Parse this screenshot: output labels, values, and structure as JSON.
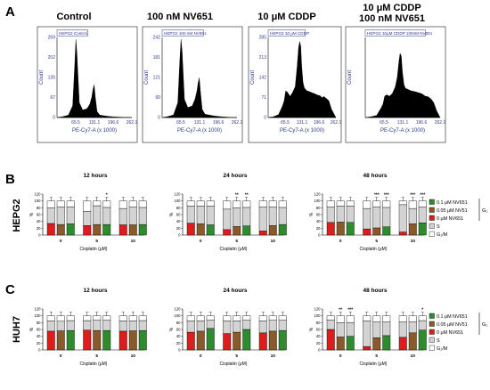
{
  "panel_letters": {
    "a": "A",
    "b": "B",
    "c": "C"
  },
  "histograms": {
    "titles": [
      "Control",
      "100 nM NV651",
      "10 μM CDDP",
      "10 μM CDDP",
      "100 nM NV651"
    ],
    "sample_labels": [
      "HEPG2 Control",
      "HEPG2 100 nM NV651",
      "HEPG2 10 μM CDDP",
      "HEPG2 10μM CDDP 100nM NV651"
    ],
    "ylabel": "Count",
    "xlabel": "PE-Cy7-A (x 1000)"
  },
  "bar_panels": {
    "row_labels": [
      "HEPG2",
      "HUH7"
    ],
    "time_titles": [
      "12 hours",
      "24 hours",
      "48 hours"
    ],
    "ylabel": "%",
    "xlabel": "Cisplatin (μM)",
    "legend": {
      "items": [
        "0.1 μM NV651",
        "0.05 μM NV51",
        "0 μM NV651",
        "S",
        "G₂/M"
      ],
      "bracket_label": "G₁",
      "colors": {
        "g1_high": "#2e8b2e",
        "g1_mid": "#8b5a2b",
        "g1_zero": "#e01b1b",
        "s": "#d3d3d3",
        "g2m": "#ffffff"
      }
    }
  },
  "chart_data": [
    {
      "type": "line",
      "title": "Control",
      "sample": "HEPG2 Control",
      "xlabel": "PE-Cy7-A (x 1000)",
      "ylabel": "Count",
      "xlim": [
        0,
        262.1
      ],
      "ylim": [
        0,
        269
      ],
      "xticks": [
        "65.5",
        "131.1",
        "196.6",
        "262.1"
      ],
      "yticks": [
        "0",
        "67",
        "135",
        "202",
        "269"
      ],
      "series": [
        {
          "x": [
            0,
            20,
            40,
            55,
            62,
            66,
            70,
            78,
            90,
            105,
            115,
            122,
            126,
            130,
            134,
            140,
            150,
            180,
            200,
            230,
            262
          ],
          "y": [
            0,
            3,
            8,
            40,
            175,
            262,
            210,
            50,
            25,
            30,
            45,
            70,
            95,
            110,
            70,
            20,
            8,
            4,
            2,
            1,
            0
          ]
        }
      ]
    },
    {
      "type": "line",
      "title": "100 nM NV651",
      "sample": "HEPG2 100 nM NV651",
      "xlabel": "PE-Cy7-A (x 1000)",
      "ylabel": "Count",
      "xlim": [
        0,
        262.1
      ],
      "ylim": [
        0,
        242
      ],
      "xticks": [
        "65.5",
        "131.1",
        "196.6",
        "262.1"
      ],
      "yticks": [
        "0",
        "60",
        "121",
        "181",
        "242"
      ],
      "series": [
        {
          "x": [
            0,
            20,
            40,
            55,
            62,
            66,
            70,
            78,
            90,
            105,
            115,
            122,
            126,
            130,
            134,
            140,
            150,
            180,
            200,
            230,
            262
          ],
          "y": [
            0,
            3,
            8,
            45,
            175,
            236,
            200,
            55,
            30,
            35,
            55,
            80,
            105,
            120,
            80,
            25,
            10,
            5,
            3,
            1,
            0
          ]
        }
      ]
    },
    {
      "type": "line",
      "title": "10 μM CDDP",
      "sample": "HEPG2 10 μM CDDP",
      "xlabel": "PE-Cy7-A (x 1000)",
      "ylabel": "Count",
      "xlim": [
        0,
        262.1
      ],
      "ylim": [
        0,
        285
      ],
      "xticks": [
        "65.5",
        "131.1",
        "196.6",
        "262.1"
      ],
      "yticks": [
        "0",
        "71",
        "142",
        "213",
        "285"
      ],
      "series": [
        {
          "x": [
            0,
            20,
            40,
            55,
            62,
            68,
            75,
            85,
            95,
            105,
            112,
            118,
            122,
            126,
            130,
            135,
            140,
            150,
            160,
            170,
            180,
            190,
            200,
            210,
            215,
            225,
            235,
            245,
            262
          ],
          "y": [
            0,
            3,
            10,
            40,
            60,
            95,
            90,
            75,
            90,
            110,
            180,
            250,
            270,
            255,
            180,
            125,
            105,
            95,
            92,
            88,
            85,
            80,
            78,
            70,
            75,
            68,
            60,
            30,
            0
          ]
        }
      ]
    },
    {
      "type": "line",
      "title": "10 μM CDDP 100 nM NV651",
      "sample": "HEPG2 10μM CDDP 100nM NV651",
      "xlabel": "PE-Cy7-A (x 1000)",
      "ylabel": "Count",
      "xlim": [
        0,
        262.1
      ],
      "ylim": [
        0,
        300
      ],
      "xticks": [
        "65.5",
        "131.1",
        "196.6",
        "262.1"
      ],
      "yticks": [],
      "series": [
        {
          "x": [
            0,
            20,
            40,
            55,
            62,
            68,
            75,
            85,
            95,
            105,
            112,
            118,
            122,
            126,
            130,
            135,
            140,
            150,
            160,
            170,
            180,
            190,
            200,
            210,
            220,
            230,
            240,
            250,
            262
          ],
          "y": [
            0,
            3,
            8,
            35,
            50,
            80,
            85,
            80,
            90,
            115,
            150,
            210,
            240,
            230,
            170,
            125,
            110,
            105,
            100,
            98,
            95,
            92,
            88,
            80,
            78,
            70,
            55,
            25,
            0
          ]
        }
      ]
    },
    {
      "type": "bar",
      "title": "12 hours",
      "cell_line": "HEPG2",
      "stacked": true,
      "xlabel": "Cisplatin (μM)",
      "ylabel": "%",
      "ylim": [
        0,
        120
      ],
      "yticks": [
        "0",
        "20",
        "40",
        "60",
        "80",
        "100",
        "120"
      ],
      "categories": [
        "0",
        "5",
        "10"
      ],
      "groups": [
        "0 μM NV651",
        "0.05 μM NV51",
        "0.1 μM NV651"
      ],
      "g1": [
        [
          34,
          31,
          33
        ],
        [
          28,
          31,
          31
        ],
        [
          30,
          30,
          31
        ]
      ],
      "s": [
        [
          46,
          52,
          50
        ],
        [
          42,
          55,
          50
        ],
        [
          48,
          52,
          50
        ]
      ],
      "g2m": [
        [
          20,
          17,
          17
        ],
        [
          30,
          14,
          19
        ],
        [
          22,
          18,
          19
        ]
      ],
      "significance": [
        [
          "",
          "",
          ""
        ],
        [
          "",
          "",
          "*"
        ],
        [
          "",
          "",
          ""
        ]
      ]
    },
    {
      "type": "bar",
      "title": "24 hours",
      "cell_line": "HEPG2",
      "stacked": true,
      "xlabel": "Cisplatin (μM)",
      "ylabel": "%",
      "ylim": [
        0,
        120
      ],
      "yticks": [
        "0",
        "20",
        "40",
        "60",
        "80",
        "100",
        "120"
      ],
      "categories": [
        "0",
        "5",
        "10"
      ],
      "groups": [
        "0 μM NV651",
        "0.05 μM NV51",
        "0.1 μM NV651"
      ],
      "g1": [
        [
          35,
          33,
          30
        ],
        [
          16,
          25,
          27
        ],
        [
          12,
          28,
          31
        ]
      ],
      "s": [
        [
          50,
          52,
          55
        ],
        [
          60,
          55,
          54
        ],
        [
          70,
          55,
          50
        ]
      ],
      "g2m": [
        [
          15,
          15,
          15
        ],
        [
          24,
          20,
          19
        ],
        [
          18,
          17,
          19
        ]
      ],
      "significance": [
        [
          "",
          "",
          ""
        ],
        [
          "",
          "**",
          "**"
        ],
        [
          "",
          "",
          ""
        ]
      ]
    },
    {
      "type": "bar",
      "title": "48 hours",
      "cell_line": "HEPG2",
      "stacked": true,
      "xlabel": "Cisplatin (μM)",
      "ylabel": "%",
      "ylim": [
        0,
        120
      ],
      "yticks": [
        "0",
        "20",
        "40",
        "60",
        "80",
        "100",
        "120"
      ],
      "categories": [
        "0",
        "5",
        "10"
      ],
      "groups": [
        "0 μM NV651",
        "0.05 μM NV51",
        "0.1 μM NV651"
      ],
      "g1": [
        [
          37,
          38,
          37
        ],
        [
          18,
          21,
          24
        ],
        [
          9,
          33,
          36
        ]
      ],
      "s": [
        [
          45,
          47,
          48
        ],
        [
          60,
          62,
          57
        ],
        [
          80,
          45,
          46
        ]
      ],
      "g2m": [
        [
          18,
          15,
          15
        ],
        [
          22,
          17,
          19
        ],
        [
          11,
          22,
          18
        ]
      ],
      "significance": [
        [
          "",
          "",
          ""
        ],
        [
          "",
          "***",
          "***"
        ],
        [
          "",
          "***",
          "***"
        ]
      ]
    },
    {
      "type": "bar",
      "title": "12 hours",
      "cell_line": "HUH7",
      "stacked": true,
      "xlabel": "Cisplatin (μM)",
      "ylabel": "%",
      "ylim": [
        0,
        120
      ],
      "yticks": [
        "0",
        "20",
        "40",
        "60",
        "80",
        "100",
        "120"
      ],
      "categories": [
        "0",
        "5",
        "10"
      ],
      "groups": [
        "0 μM NV651",
        "0.05 μM NV51",
        "0.1 μM NV651"
      ],
      "g1": [
        [
          55,
          56,
          57
        ],
        [
          58,
          57,
          57
        ],
        [
          55,
          56,
          57
        ]
      ],
      "s": [
        [
          30,
          28,
          29
        ],
        [
          28,
          30,
          30
        ],
        [
          30,
          29,
          29
        ]
      ],
      "g2m": [
        [
          15,
          16,
          14
        ],
        [
          14,
          13,
          13
        ],
        [
          15,
          15,
          14
        ]
      ],
      "significance": [
        [
          "",
          "",
          ""
        ],
        [
          "",
          "",
          ""
        ],
        [
          "",
          "",
          ""
        ]
      ]
    },
    {
      "type": "bar",
      "title": "24 hours",
      "cell_line": "HUH7",
      "stacked": true,
      "xlabel": "Cisplatin (μM)",
      "ylabel": "%",
      "ylim": [
        0,
        120
      ],
      "yticks": [
        "0",
        "20",
        "40",
        "60",
        "80",
        "100",
        "120"
      ],
      "categories": [
        "0",
        "5",
        "10"
      ],
      "groups": [
        "0 μM NV651",
        "0.05 μM NV51",
        "0.1 μM NV651"
      ],
      "g1": [
        [
          52,
          55,
          63
        ],
        [
          48,
          52,
          60
        ],
        [
          50,
          55,
          57
        ]
      ],
      "s": [
        [
          33,
          30,
          25
        ],
        [
          37,
          33,
          27
        ],
        [
          35,
          32,
          30
        ]
      ],
      "g2m": [
        [
          15,
          15,
          12
        ],
        [
          15,
          15,
          13
        ],
        [
          15,
          13,
          13
        ]
      ],
      "significance": [
        [
          "",
          "",
          ""
        ],
        [
          "",
          "",
          ""
        ],
        [
          "",
          "",
          ""
        ]
      ]
    },
    {
      "type": "bar",
      "title": "48 hours",
      "cell_line": "HUH7",
      "stacked": true,
      "xlabel": "Cisplatin (μM)",
      "ylabel": "%",
      "ylim": [
        0,
        120
      ],
      "yticks": [
        "0",
        "20",
        "40",
        "60",
        "80",
        "100",
        "120"
      ],
      "categories": [
        "0",
        "5",
        "10"
      ],
      "groups": [
        "0 μM NV651",
        "0.05 μM NV51",
        "0.1 μM NV651"
      ],
      "g1": [
        [
          60,
          38,
          40
        ],
        [
          10,
          36,
          42
        ],
        [
          37,
          50,
          58
        ]
      ],
      "s": [
        [
          28,
          42,
          40
        ],
        [
          75,
          46,
          40
        ],
        [
          45,
          33,
          28
        ]
      ],
      "g2m": [
        [
          12,
          20,
          20
        ],
        [
          15,
          18,
          18
        ],
        [
          18,
          17,
          14
        ]
      ],
      "significance": [
        [
          "",
          "**",
          "***"
        ],
        [
          "",
          "",
          ""
        ],
        [
          "",
          "",
          "*"
        ]
      ]
    }
  ]
}
